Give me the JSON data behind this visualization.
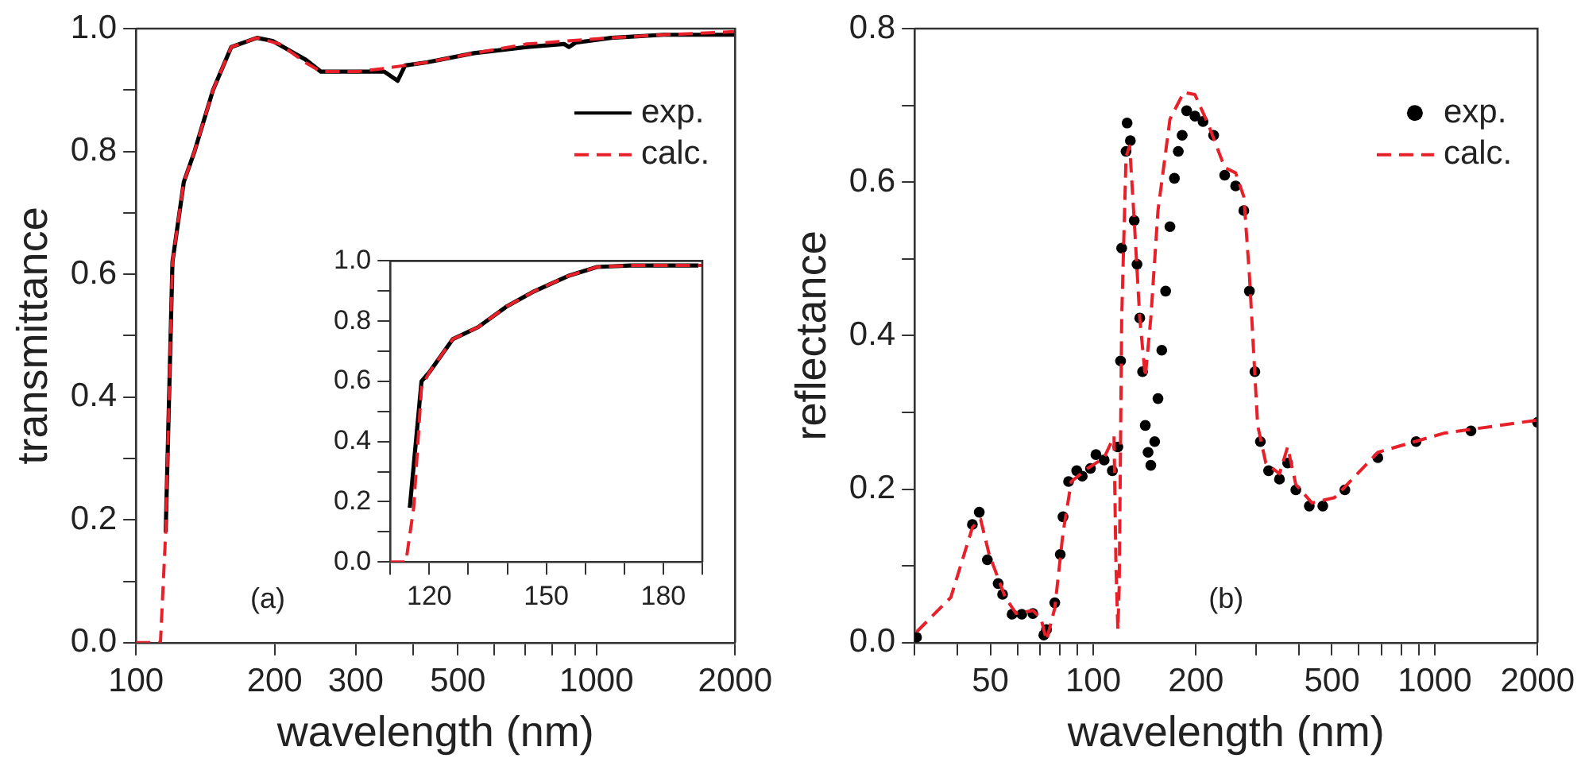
{
  "chart_data": [
    {
      "type": "line",
      "xlabel": "wavelength (nm)",
      "ylabel": "transmittance",
      "log": "x",
      "grid": false,
      "legend": "top right",
      "annotations": [
        "(a)"
      ],
      "xlim": [
        100,
        2000
      ],
      "xticks": [
        100,
        200,
        300,
        {
          "value": 400,
          "label": null
        },
        500,
        {
          "value": 600,
          "label": null
        },
        {
          "value": 700,
          "label": null
        },
        {
          "value": 800,
          "label": null
        },
        {
          "value": 900,
          "label": null
        },
        1000,
        2000
      ],
      "ylim": [
        0,
        1
      ],
      "yticks": [
        {
          "value": 0,
          "label": "0.0"
        },
        {
          "value": 0.1,
          "label": null
        },
        0.2,
        {
          "value": 0.3,
          "label": null
        },
        0.4,
        {
          "value": 0.5,
          "label": null
        },
        0.6,
        {
          "value": 0.7,
          "label": null
        },
        0.8,
        {
          "value": 0.9,
          "label": null
        },
        {
          "value": 1,
          "label": "1.0"
        }
      ],
      "series": [
        {
          "name": "exp.",
          "color": "#000000",
          "type": "line",
          "line_style": "solid",
          "x": [
            116,
            119,
            120,
            127,
            134,
            147,
            161,
            183,
            198,
            233,
            252,
            303,
            346,
            370,
            384,
            428,
            542,
            707,
            850,
            872,
            900,
            1076,
            1400,
            2000
          ],
          "values": [
            0.18,
            0.51,
            0.62,
            0.75,
            0.8,
            0.9,
            0.97,
            0.985,
            0.98,
            0.95,
            0.93,
            0.93,
            0.93,
            0.915,
            0.94,
            0.945,
            0.96,
            0.97,
            0.975,
            0.97,
            0.977,
            0.985,
            0.99,
            0.99
          ]
        },
        {
          "name": "calc.",
          "color": "#e8202a",
          "type": "line",
          "line_style": "dashed",
          "x": [
            100,
            113,
            116,
            119,
            120,
            127,
            134,
            147,
            161,
            183,
            205,
            233,
            252,
            303,
            346,
            384,
            428,
            542,
            707,
            1076,
            1400,
            2000
          ],
          "values": [
            0,
            0,
            0.18,
            0.51,
            0.62,
            0.75,
            0.8,
            0.9,
            0.97,
            0.985,
            0.975,
            0.945,
            0.93,
            0.93,
            0.935,
            0.94,
            0.945,
            0.96,
            0.975,
            0.985,
            0.99,
            0.995
          ]
        }
      ]
    },
    {
      "type": "line",
      "grid": false,
      "xlim": [
        110,
        190
      ],
      "xticks": [
        {
          "value": 110,
          "label": null
        },
        120,
        {
          "value": 130,
          "label": null
        },
        {
          "value": 140,
          "label": null
        },
        150,
        {
          "value": 160,
          "label": null
        },
        {
          "value": 170,
          "label": null
        },
        180,
        {
          "value": 190,
          "label": null
        }
      ],
      "ylim": [
        0,
        1
      ],
      "yticks": [
        {
          "value": 0,
          "label": "0.0"
        },
        {
          "value": 0.1,
          "label": null
        },
        0.2,
        {
          "value": 0.3,
          "label": null
        },
        0.4,
        {
          "value": 0.5,
          "label": null
        },
        0.6,
        {
          "value": 0.7,
          "label": null
        },
        0.8,
        {
          "value": 0.9,
          "label": null
        },
        {
          "value": 1,
          "label": "1.0"
        }
      ],
      "series": [
        {
          "color": "#000000",
          "type": "line",
          "line_style": "solid",
          "x": [
            115,
            118,
            120,
            126,
            132.5,
            140,
            147,
            155.6,
            163,
            171.6,
            189
          ],
          "values": [
            0.18,
            0.6,
            0.63,
            0.74,
            0.78,
            0.85,
            0.9,
            0.95,
            0.98,
            0.985,
            0.985
          ]
        },
        {
          "color": "#e8202a",
          "type": "line",
          "line_style": "dashed",
          "x": [
            110,
            114,
            116,
            118,
            120,
            126,
            132.5,
            140,
            147,
            155.6,
            163,
            172,
            190
          ],
          "values": [
            0,
            0,
            0.18,
            0.58,
            0.63,
            0.74,
            0.78,
            0.85,
            0.9,
            0.95,
            0.98,
            0.985,
            0.985
          ]
        }
      ]
    },
    {
      "type": "line",
      "xlabel": "wavelength (nm)",
      "ylabel": "reflectance",
      "log": "x",
      "grid": false,
      "legend": "top right",
      "annotations": [
        "(b)"
      ],
      "xlim": [
        30,
        2000
      ],
      "xticks": [
        {
          "value": 30,
          "label": null
        },
        {
          "value": 40,
          "label": null
        },
        50,
        {
          "value": 60,
          "label": null
        },
        {
          "value": 70,
          "label": null
        },
        {
          "value": 80,
          "label": null
        },
        {
          "value": 90,
          "label": null
        },
        100,
        200,
        {
          "value": 300,
          "label": null
        },
        {
          "value": 400,
          "label": null
        },
        500,
        {
          "value": 600,
          "label": null
        },
        {
          "value": 700,
          "label": null
        },
        {
          "value": 800,
          "label": null
        },
        {
          "value": 900,
          "label": null
        },
        1000,
        2000
      ],
      "ylim": [
        0,
        0.8
      ],
      "yticks": [
        {
          "value": 0,
          "label": "0.0"
        },
        {
          "value": 0.1,
          "label": null
        },
        0.2,
        {
          "value": 0.3,
          "label": null
        },
        0.4,
        {
          "value": 0.5,
          "label": null
        },
        0.6,
        {
          "value": 0.7,
          "label": null
        },
        0.8
      ],
      "series": [
        {
          "name": "exp.",
          "color": "#000000",
          "type": "scatter",
          "marker": "circle",
          "x": [
            30.4,
            44.3,
            46.4,
            49,
            52.7,
            54.3,
            57.9,
            61.8,
            66.6,
            71.7,
            73,
            77.2,
            80.1,
            81.6,
            84.7,
            89.5,
            92.9,
            98.2,
            101.9,
            107.7,
            113.8,
            118.1,
            120.3,
            121.2,
            124.8,
            125.7,
            128.5,
            131.9,
            134.4,
            136.9,
            139.5,
            142.1,
            144.8,
            147.5,
            151.4,
            154.8,
            158.8,
            163,
            167.8,
            172.9,
            177.5,
            182.2,
            187.8,
            198.6,
            209.7,
            225.3,
            242.7,
            261.3,
            276.1,
            286.7,
            297.5,
            308.7,
            326.4,
            351.1,
            371,
            392.1,
            429.3,
            470.3,
            545.7,
            681.7,
            882,
            1277,
            2000
          ],
          "values": [
            0.007,
            0.154,
            0.17,
            0.108,
            0.077,
            0.063,
            0.037,
            0.037,
            0.038,
            0.01,
            0.017,
            0.052,
            0.115,
            0.164,
            0.21,
            0.224,
            0.217,
            0.227,
            0.245,
            0.238,
            0.224,
            0.255,
            0.367,
            0.514,
            0.64,
            0.677,
            0.654,
            0.55,
            0.493,
            0.423,
            0.353,
            0.283,
            0.248,
            0.231,
            0.262,
            0.318,
            0.381,
            0.458,
            0.542,
            0.605,
            0.64,
            0.661,
            0.693,
            0.686,
            0.679,
            0.661,
            0.609,
            0.595,
            0.563,
            0.458,
            0.353,
            0.262,
            0.224,
            0.213,
            0.234,
            0.199,
            0.178,
            0.178,
            0.199,
            0.241,
            0.262,
            0.276,
            0.287
          ]
        },
        {
          "name": "calc.",
          "color": "#e8202a",
          "type": "line",
          "line_style": "dashed",
          "x": [
            30.4,
            38.3,
            44.3,
            46.8,
            49.6,
            55.3,
            59.5,
            66.6,
            70.4,
            73,
            77.2,
            81.6,
            86.3,
            96.3,
            107.7,
            115.1,
            116.6,
            118.1,
            119.2,
            121.2,
            124.8,
            127.9,
            131.9,
            136.9,
            142.1,
            147.5,
            154.8,
            167.8,
            184.2,
            198.6,
            217.4,
            242.7,
            261.3,
            276.1,
            286.7,
            303.1,
            320.3,
            351.1,
            371,
            392.1,
            437.3,
            509.1,
            681.7,
            1066,
            2000
          ],
          "values": [
            0.014,
            0.059,
            0.15,
            0.161,
            0.115,
            0.059,
            0.038,
            0.042,
            0.031,
            0.003,
            0.045,
            0.143,
            0.21,
            0.227,
            0.241,
            0.269,
            0.101,
            0.017,
            0.073,
            0.423,
            0.633,
            0.647,
            0.55,
            0.423,
            0.346,
            0.423,
            0.563,
            0.682,
            0.717,
            0.714,
            0.675,
            0.619,
            0.612,
            0.581,
            0.479,
            0.283,
            0.234,
            0.22,
            0.255,
            0.206,
            0.182,
            0.189,
            0.248,
            0.273,
            0.29
          ]
        }
      ]
    }
  ]
}
